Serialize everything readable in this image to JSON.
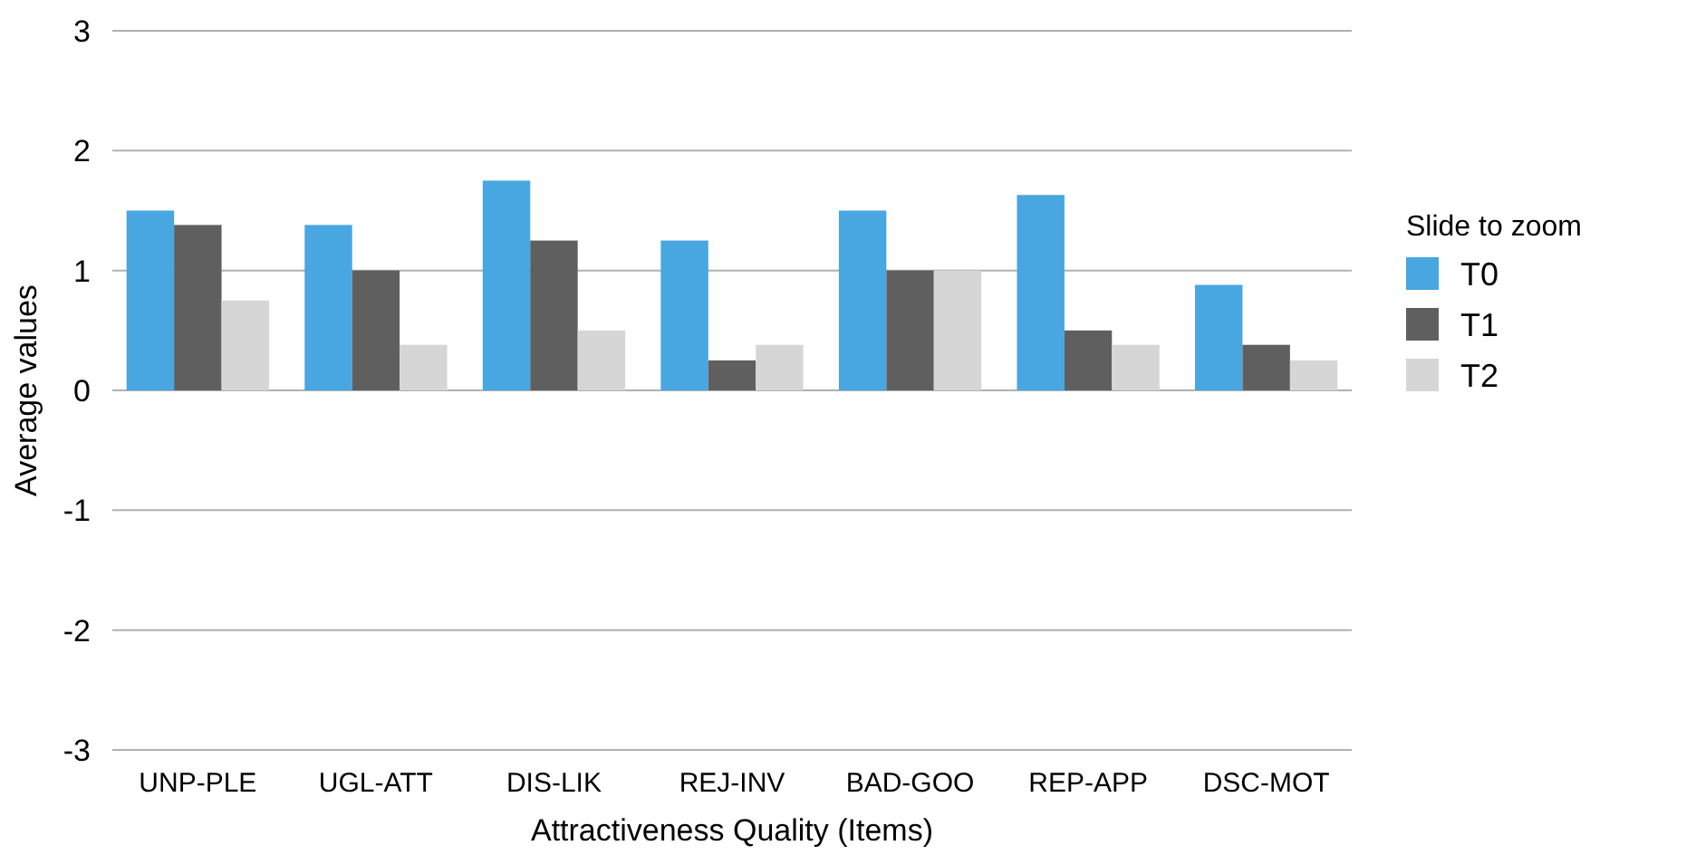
{
  "chart_data": {
    "type": "bar",
    "xlabel": "Attractiveness Quality (Items)",
    "ylabel": "Average values",
    "legend_title": "Slide to zoom",
    "categories": [
      "UNP-PLE",
      "UGL-ATT",
      "DIS-LIK",
      "REJ-INV",
      "BAD-GOO",
      "REP-APP",
      "DSC-MOT"
    ],
    "series": [
      {
        "name": "T0",
        "color": "#48a6e0",
        "values": [
          1.5,
          1.38,
          1.75,
          1.25,
          1.5,
          1.63,
          0.88
        ]
      },
      {
        "name": "T1",
        "color": "#5f5f5f",
        "values": [
          1.38,
          1,
          1.25,
          0.25,
          1,
          0.5,
          0.38
        ]
      },
      {
        "name": "T2",
        "color": "#d6d6d6",
        "values": [
          0.75,
          0.38,
          0.5,
          0.38,
          1,
          0.38,
          0.25
        ]
      }
    ],
    "ylim": [
      -3,
      3
    ],
    "yticks": [
      -3,
      -2,
      -1,
      0,
      1,
      2,
      3
    ],
    "grid": "y",
    "legend": "right"
  }
}
